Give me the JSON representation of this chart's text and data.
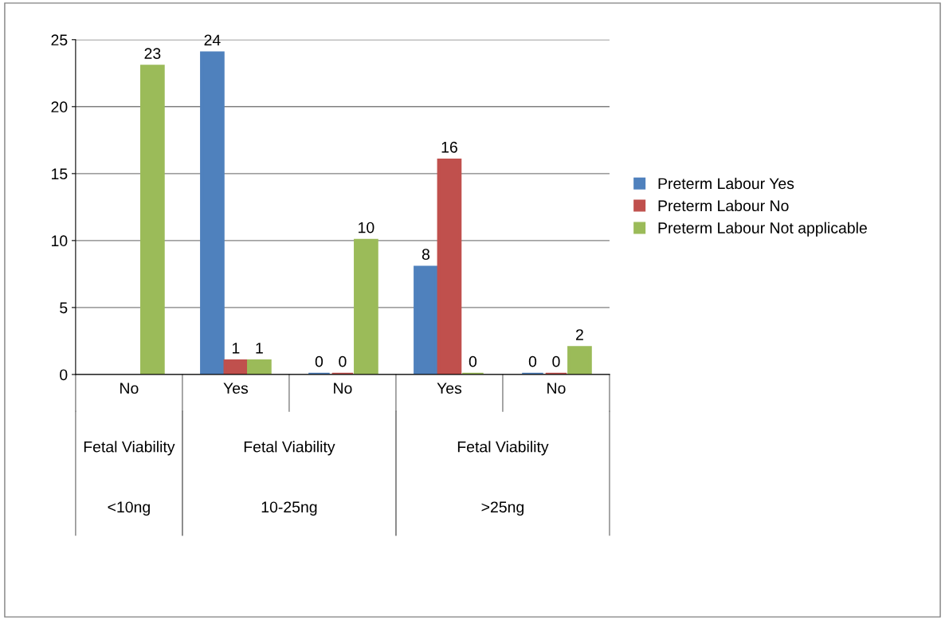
{
  "chart_data": {
    "type": "bar",
    "categories": [
      "No",
      "Yes",
      "No",
      "Yes",
      "No"
    ],
    "series": [
      {
        "name": "Preterm Labour Yes",
        "color": "#4f81bd",
        "values": [
          null,
          24,
          0,
          8,
          0
        ]
      },
      {
        "name": "Preterm Labour No",
        "color": "#c0504d",
        "values": [
          null,
          1,
          0,
          16,
          0
        ]
      },
      {
        "name": "Preterm Labour Not applicable",
        "color": "#9bbb59",
        "values": [
          23,
          1,
          10,
          0,
          2
        ]
      }
    ],
    "ylim": [
      0,
      25
    ],
    "yticks": [
      0,
      5,
      10,
      15,
      20,
      25
    ],
    "grid": "y",
    "legend": "right",
    "data_labels": true,
    "annotations": [
      "Fetal Viability",
      "Fetal Viability",
      "Fetal Viability",
      "<10ng",
      "10-25ng",
      ">25ng"
    ]
  }
}
